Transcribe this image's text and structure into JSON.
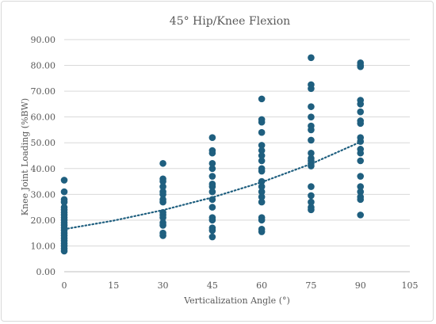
{
  "chart_data": {
    "type": "scatter",
    "title": "45° Hip/Knee Flexion",
    "xlabel": "Verticalization Angle (°)",
    "ylabel": "Knee Joint Loading (%BW)",
    "xlim": [
      0,
      105
    ],
    "ylim": [
      0,
      90
    ],
    "xticks": [
      "0",
      "15",
      "30",
      "45",
      "60",
      "75",
      "90",
      "105"
    ],
    "yticks": [
      "0.00",
      "10.00",
      "20.00",
      "30.00",
      "40.00",
      "50.00",
      "60.00",
      "70.00",
      "80.00",
      "90.00"
    ],
    "grid": true,
    "series": [
      {
        "color": "#1f5f7f",
        "points": [
          [
            0,
            35.5
          ],
          [
            0,
            31.0
          ],
          [
            0,
            28.0
          ],
          [
            0,
            27.0
          ],
          [
            0,
            25.0
          ],
          [
            0,
            24.0
          ],
          [
            0,
            23.0
          ],
          [
            0,
            22.0
          ],
          [
            0,
            21.0
          ],
          [
            0,
            20.0
          ],
          [
            0,
            19.0
          ],
          [
            0,
            18.0
          ],
          [
            0,
            17.0
          ],
          [
            0,
            16.0
          ],
          [
            0,
            15.0
          ],
          [
            0,
            14.0
          ],
          [
            0,
            13.0
          ],
          [
            0,
            12.0
          ],
          [
            0,
            11.0
          ],
          [
            0,
            10.0
          ],
          [
            0,
            9.0
          ],
          [
            0,
            8.0
          ],
          [
            30,
            42.0
          ],
          [
            30,
            36.0
          ],
          [
            30,
            35.0
          ],
          [
            30,
            33.0
          ],
          [
            30,
            31.0
          ],
          [
            30,
            30.0
          ],
          [
            30,
            28.0
          ],
          [
            30,
            27.0
          ],
          [
            30,
            23.0
          ],
          [
            30,
            22.0
          ],
          [
            30,
            21.0
          ],
          [
            30,
            19.0
          ],
          [
            30,
            18.0
          ],
          [
            30,
            15.0
          ],
          [
            30,
            14.0
          ],
          [
            45,
            52.0
          ],
          [
            45,
            47.0
          ],
          [
            45,
            46.0
          ],
          [
            45,
            42.0
          ],
          [
            45,
            40.0
          ],
          [
            45,
            37.0
          ],
          [
            45,
            34.0
          ],
          [
            45,
            33.0
          ],
          [
            45,
            31.0
          ],
          [
            45,
            28.0
          ],
          [
            45,
            25.0
          ],
          [
            45,
            21.0
          ],
          [
            45,
            20.0
          ],
          [
            45,
            17.0
          ],
          [
            45,
            16.0
          ],
          [
            45,
            13.5
          ],
          [
            60,
            67.0
          ],
          [
            60,
            59.0
          ],
          [
            60,
            58.0
          ],
          [
            60,
            54.0
          ],
          [
            60,
            49.0
          ],
          [
            60,
            47.0
          ],
          [
            60,
            45.0
          ],
          [
            60,
            43.0
          ],
          [
            60,
            40.0
          ],
          [
            60,
            39.0
          ],
          [
            60,
            35.0
          ],
          [
            60,
            33.0
          ],
          [
            60,
            31.0
          ],
          [
            60,
            29.0
          ],
          [
            60,
            27.0
          ],
          [
            60,
            21.0
          ],
          [
            60,
            20.0
          ],
          [
            60,
            16.5
          ],
          [
            60,
            15.5
          ],
          [
            75,
            83.0
          ],
          [
            75,
            72.5
          ],
          [
            75,
            71.0
          ],
          [
            75,
            64.0
          ],
          [
            75,
            60.0
          ],
          [
            75,
            56.5
          ],
          [
            75,
            55.0
          ],
          [
            75,
            51.0
          ],
          [
            75,
            46.0
          ],
          [
            75,
            44.0
          ],
          [
            75,
            43.0
          ],
          [
            75,
            42.0
          ],
          [
            75,
            41.0
          ],
          [
            75,
            33.0
          ],
          [
            75,
            29.5
          ],
          [
            75,
            27.0
          ],
          [
            75,
            25.0
          ],
          [
            75,
            24.0
          ],
          [
            90,
            81.0
          ],
          [
            90,
            80.0
          ],
          [
            90,
            79.5
          ],
          [
            90,
            66.5
          ],
          [
            90,
            65.0
          ],
          [
            90,
            62.0
          ],
          [
            90,
            58.5
          ],
          [
            90,
            57.5
          ],
          [
            90,
            52.0
          ],
          [
            90,
            50.5
          ],
          [
            90,
            47.5
          ],
          [
            90,
            46.0
          ],
          [
            90,
            43.0
          ],
          [
            90,
            37.0
          ],
          [
            90,
            33.0
          ],
          [
            90,
            31.0
          ],
          [
            90,
            29.0
          ],
          [
            90,
            28.0
          ],
          [
            90,
            22.0
          ]
        ]
      }
    ],
    "trendline": {
      "type": "exponential",
      "style": "dotted",
      "x": [
        0,
        15,
        30,
        45,
        60,
        75,
        90
      ],
      "y": [
        16.5,
        19.8,
        23.9,
        28.8,
        34.7,
        41.8,
        50.3
      ]
    }
  }
}
